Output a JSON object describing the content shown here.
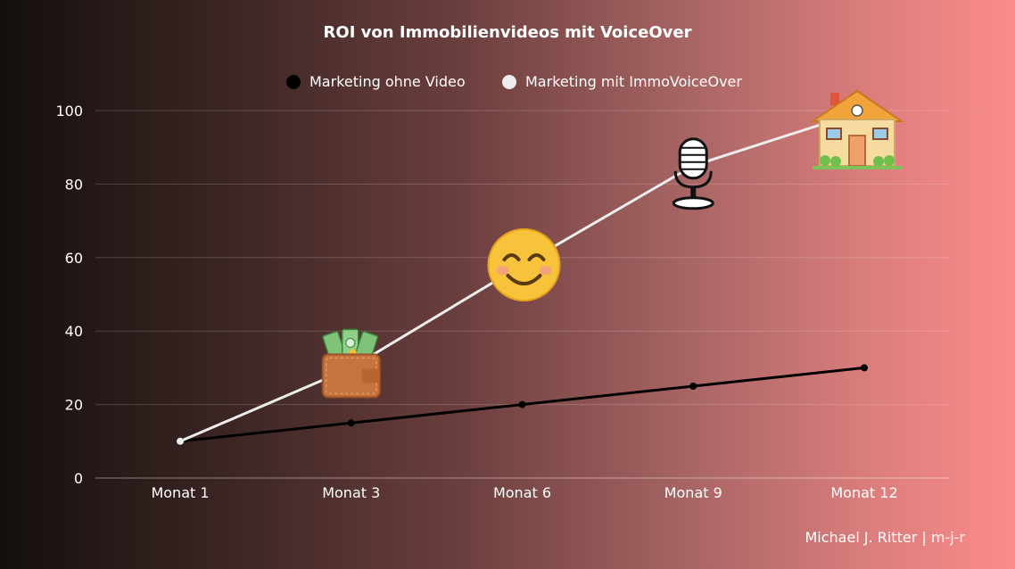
{
  "chart_data": {
    "type": "line",
    "title": "ROI von Immobilienvideos mit VoiceOver",
    "categories": [
      "Monat 1",
      "Monat 3",
      "Monat 6",
      "Monat 9",
      "Monat 12"
    ],
    "ylim": [
      0,
      100
    ],
    "yticks": [
      0,
      20,
      40,
      60,
      80,
      100
    ],
    "grid": true,
    "legend_position": "top-center",
    "series": [
      {
        "name": "Marketing ohne Video",
        "values": [
          10,
          15,
          20,
          25,
          30
        ],
        "color": "#000000"
      },
      {
        "name": "Marketing mit ImmoVoiceOver",
        "values": [
          10,
          30,
          58,
          85,
          100
        ],
        "color": "#eeeeee"
      }
    ],
    "annotations": [
      {
        "icon": "wallet-money-icon",
        "category": "Monat 3",
        "y": 30
      },
      {
        "icon": "smiling-face-icon",
        "category": "Monat 6",
        "y": 58
      },
      {
        "icon": "microphone-icon",
        "category": "Monat 9",
        "y": 85
      },
      {
        "icon": "house-icon",
        "category": "Monat 12",
        "y": 100
      }
    ]
  },
  "credit": "Michael J. Ritter | m-j-r"
}
